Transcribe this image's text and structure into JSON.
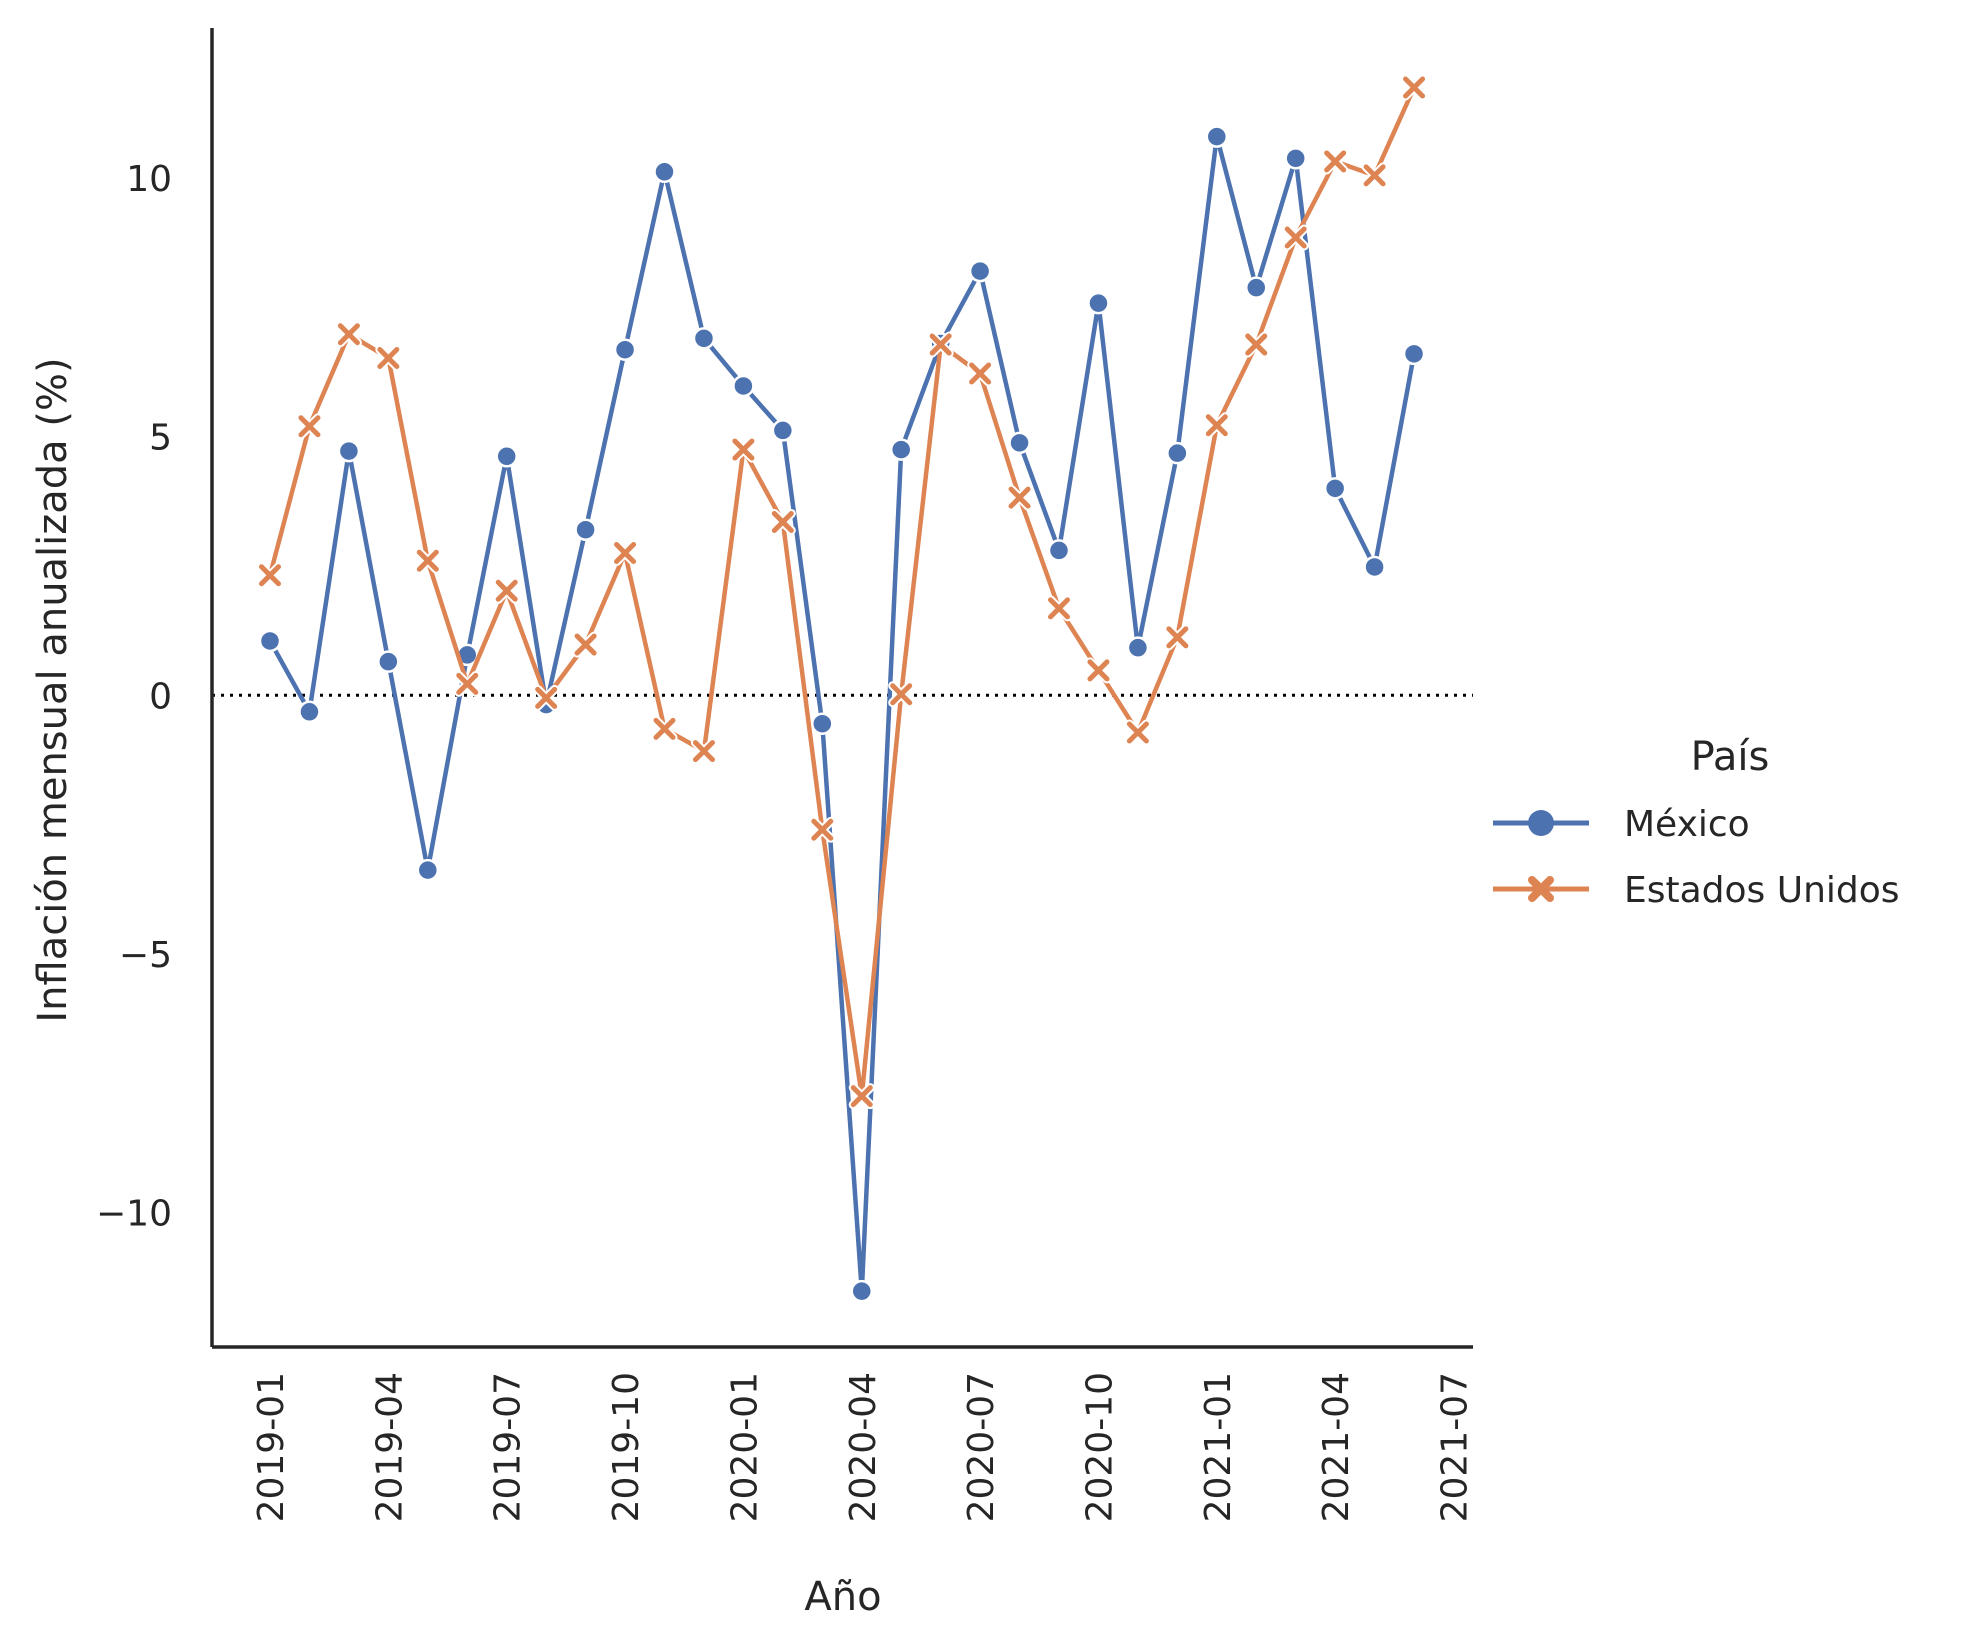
{
  "chart_data": {
    "type": "line",
    "xlabel": "Año",
    "ylabel": "Inflación mensual anualizada (%)",
    "x": [
      "2019-01",
      "2019-02",
      "2019-03",
      "2019-04",
      "2019-05",
      "2019-06",
      "2019-07",
      "2019-08",
      "2019-09",
      "2019-10",
      "2019-11",
      "2019-12",
      "2020-01",
      "2020-02",
      "2020-03",
      "2020-04",
      "2020-05",
      "2020-06",
      "2020-07",
      "2020-08",
      "2020-09",
      "2020-10",
      "2020-11",
      "2020-12",
      "2021-01",
      "2021-02",
      "2021-03",
      "2021-04",
      "2021-05",
      "2021-06"
    ],
    "x_ticks": [
      "2019-01",
      "2019-04",
      "2019-07",
      "2019-10",
      "2020-01",
      "2020-04",
      "2020-07",
      "2020-10",
      "2021-01",
      "2021-04",
      "2021-07"
    ],
    "y_ticks": [
      10,
      5,
      0,
      -5,
      -10
    ],
    "y_tick_labels": [
      "10",
      "5",
      "0",
      "−5",
      "−10"
    ],
    "ylim": [
      -12.6,
      12.9
    ],
    "reference_line": {
      "y": 0,
      "style": "dotted",
      "color": "#000000"
    },
    "legend": {
      "title": "País",
      "position": "right"
    },
    "series": [
      {
        "name": "México",
        "color": "#4c72b0",
        "marker": "circle",
        "values": [
          1.05,
          -0.32,
          4.72,
          0.65,
          -3.38,
          0.78,
          4.62,
          -0.18,
          3.2,
          6.68,
          10.12,
          6.9,
          5.98,
          5.12,
          -0.55,
          -11.52,
          4.75,
          6.8,
          8.2,
          4.88,
          2.8,
          7.58,
          0.92,
          4.68,
          10.8,
          7.88,
          10.38,
          4.0,
          2.48,
          6.6
        ]
      },
      {
        "name": "Estados Unidos",
        "color": "#dd8452",
        "marker": "x",
        "values": [
          2.32,
          5.2,
          6.98,
          6.52,
          2.6,
          0.22,
          2.02,
          -0.05,
          0.98,
          2.75,
          -0.65,
          -1.08,
          4.75,
          3.35,
          -2.6,
          -7.75,
          0.02,
          6.78,
          6.22,
          3.82,
          1.68,
          0.48,
          -0.72,
          1.12,
          5.22,
          6.78,
          8.85,
          10.32,
          10.05,
          11.75
        ]
      }
    ]
  }
}
